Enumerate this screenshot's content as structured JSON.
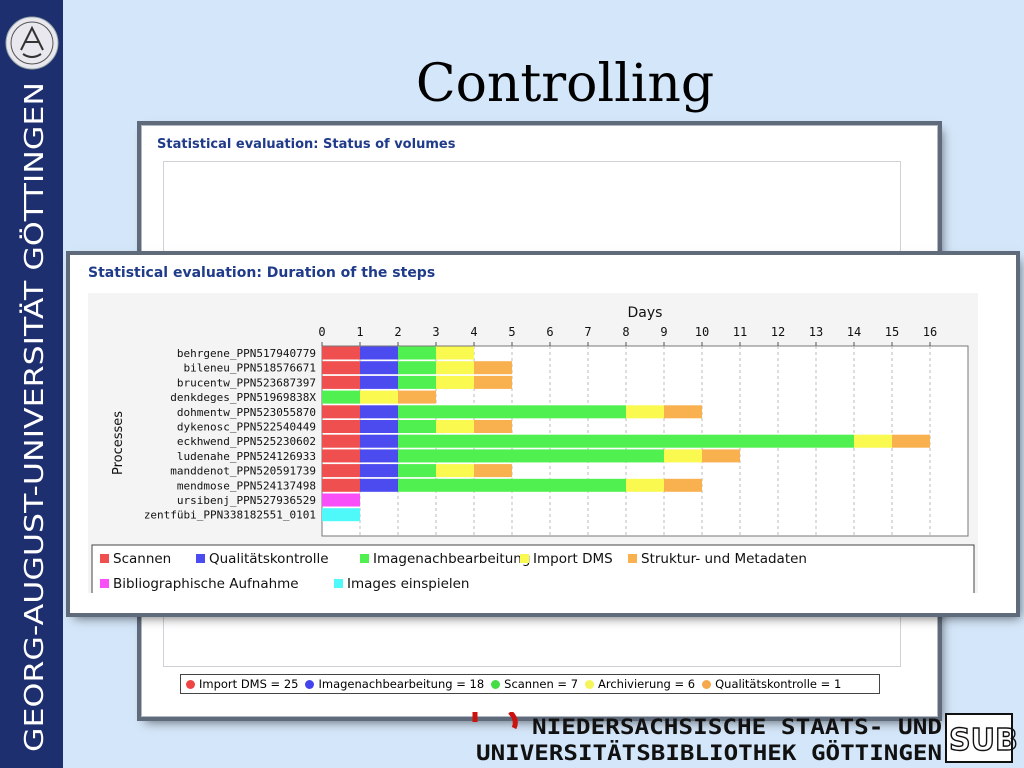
{
  "slide_title": "Controlling",
  "sidebar": {
    "university_name": "GEORG-AUGUST-UNIVERSITÄT   GÖTTINGEN",
    "seal_icon": "university-seal-icon"
  },
  "back_panel": {
    "title": "Statistical evaluation: Status of volumes",
    "legend": [
      {
        "label": "Import DMS = 25",
        "color": "#ef4444"
      },
      {
        "label": "Imagenachbearbeitung = 18",
        "color": "#4444ee"
      },
      {
        "label": "Scannen = 7",
        "color": "#44dd44"
      },
      {
        "label": "Archivierung = 6",
        "color": "#f5f55a"
      },
      {
        "label": "Qualitätskontrolle = 1",
        "color": "#f5a94a"
      }
    ]
  },
  "front_panel": {
    "title": "Statistical evaluation: Duration of the steps"
  },
  "chart_data": [
    {
      "type": "pie",
      "title": "Statistical evaluation: Status of volumes",
      "slices": [
        {
          "label": "Import DMS",
          "value": 25,
          "color": "#ef4444"
        },
        {
          "label": "Imagenachbearbeitung",
          "value": 18,
          "color": "#4444ee"
        },
        {
          "label": "Scannen",
          "value": 7,
          "color": "#44dd44"
        },
        {
          "label": "Archivierung",
          "value": 6,
          "color": "#f5f55a"
        },
        {
          "label": "Qualitätskontrolle",
          "value": 1,
          "color": "#f5a94a"
        }
      ]
    },
    {
      "type": "bar",
      "orientation": "horizontal-stacked",
      "title": "Statistical evaluation: Duration of the steps",
      "xlabel": "Days",
      "ylabel": "Processes",
      "xlim": [
        0,
        17
      ],
      "xticks": [
        "0",
        "1",
        "2",
        "3",
        "4",
        "5",
        "6",
        "7",
        "8",
        "9",
        "10",
        "11",
        "12",
        "13",
        "14",
        "15",
        "16"
      ],
      "grid": true,
      "legend_position": "bottom",
      "categories": [
        "behrgene_PPN517940779",
        "bileneu_PPN518576671",
        "brucentw_PPN523687397",
        "denkdeges_PPN51969838X",
        "dohmentw_PPN523055870",
        "dykenosc_PPN522540449",
        "eckhwend_PPN525230602",
        "ludenahe_PPN524126933",
        "manddenot_PPN520591739",
        "mendmose_PPN524137498",
        "ursibenj_PPN527936529",
        "zentfübi_PPN338182551_0101"
      ],
      "series": [
        {
          "name": "Scannen",
          "color": "#ef4f4f",
          "values": [
            1,
            1,
            1,
            0,
            1,
            1,
            1,
            1,
            1,
            1,
            0,
            0
          ]
        },
        {
          "name": "Qualitätskontrolle",
          "color": "#4b4bef",
          "values": [
            1,
            1,
            1,
            0,
            1,
            1,
            1,
            1,
            1,
            1,
            0,
            0
          ]
        },
        {
          "name": "Imagenachbearbeitung",
          "color": "#4ff04f",
          "values": [
            1,
            1,
            1,
            1,
            6,
            1,
            12,
            7,
            1,
            6,
            0,
            0
          ]
        },
        {
          "name": "Import DMS",
          "color": "#f9f94f",
          "values": [
            1,
            1,
            1,
            1,
            1,
            1,
            1,
            1,
            1,
            1,
            0,
            0
          ]
        },
        {
          "name": "Struktur- und Metadaten",
          "color": "#f9b04f",
          "values": [
            0,
            1,
            1,
            1,
            1,
            1,
            1,
            1,
            1,
            1,
            0,
            0
          ]
        },
        {
          "name": "Bibliographische Aufnahme",
          "color": "#f94ff9",
          "values": [
            0,
            0,
            0,
            0,
            0,
            0,
            0,
            0,
            0,
            0,
            1,
            0
          ]
        },
        {
          "name": "Images einspielen",
          "color": "#4ff9f9",
          "values": [
            0,
            0,
            0,
            0,
            0,
            0,
            0,
            0,
            0,
            0,
            0,
            1
          ]
        }
      ]
    }
  ],
  "footer": {
    "line1": "NIEDERSACHSISCHE  STAATS- UND",
    "line2": "UNIVERSITÄTSBIBLIOTHEK  GÖTTINGEN",
    "logo_text": "SUB"
  }
}
